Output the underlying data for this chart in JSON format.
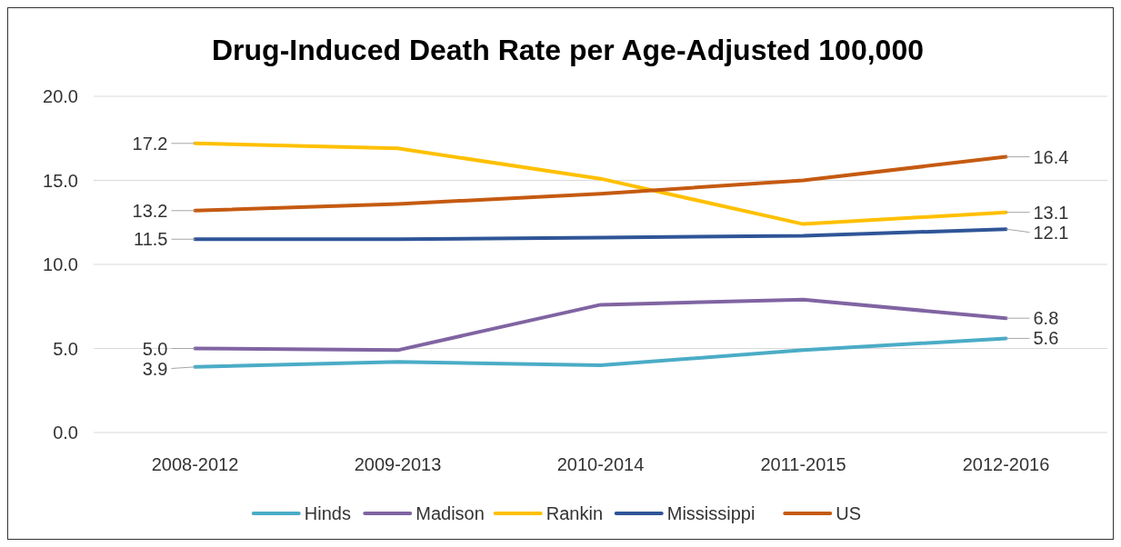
{
  "chart_data": {
    "type": "line",
    "title": "Drug-Induced Death Rate per Age-Adjusted 100,000",
    "categories": [
      "2008-2012",
      "2009-2013",
      "2010-2014",
      "2011-2015",
      "2012-2016"
    ],
    "series": [
      {
        "name": "Hinds",
        "color": "#4bacc6",
        "values": [
          3.9,
          4.2,
          4.0,
          4.9,
          5.6
        ],
        "value_labels": [
          "3.9",
          null,
          null,
          null,
          "5.6"
        ]
      },
      {
        "name": "Madison",
        "color": "#8064a2",
        "values": [
          5.0,
          4.9,
          7.6,
          7.9,
          6.8
        ],
        "value_labels": [
          "5.0",
          null,
          null,
          null,
          "6.8"
        ]
      },
      {
        "name": "Rankin",
        "color": "#ffc000",
        "values": [
          17.2,
          16.9,
          15.1,
          12.4,
          13.1
        ],
        "value_labels": [
          "17.2",
          null,
          null,
          null,
          "13.1"
        ]
      },
      {
        "name": "Mississippi",
        "color": "#2f5597",
        "values": [
          11.5,
          11.5,
          11.6,
          11.7,
          12.1
        ],
        "value_labels": [
          "11.5",
          null,
          null,
          null,
          "12.1"
        ]
      },
      {
        "name": "US",
        "color": "#c55a11",
        "values": [
          13.2,
          13.6,
          14.2,
          15.0,
          16.4
        ],
        "value_labels": [
          "13.2",
          null,
          null,
          null,
          "16.4"
        ]
      }
    ],
    "ylim": [
      0,
      20
    ],
    "yticks": [
      {
        "value": 0,
        "label": "0.0"
      },
      {
        "value": 5,
        "label": "5.0"
      },
      {
        "value": 10,
        "label": "10.0"
      },
      {
        "value": 15,
        "label": "15.0"
      },
      {
        "value": 20,
        "label": "20.0"
      }
    ],
    "grid": "y",
    "legend": "bottom",
    "marker": "none",
    "line_style": "solid"
  }
}
